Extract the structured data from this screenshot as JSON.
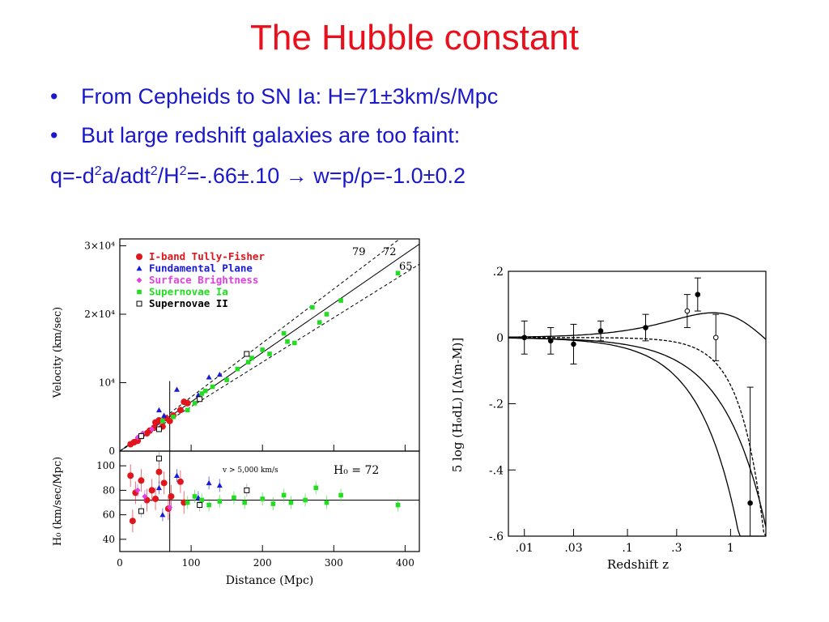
{
  "slide": {
    "title": "The Hubble constant",
    "bullets": [
      "From Cepheids to SN Ia: H=71±3km/s/Mpc",
      "But large redshift galaxies are too faint:"
    ],
    "formula": {
      "p1": "q=-d",
      "s1": "2",
      "p2": "a/adt",
      "s2": "2",
      "p3": "/H",
      "s3": "2",
      "p4": "=-.66±.10  → w=p/ρ=-1.0±0.2"
    }
  },
  "chart_data": [
    {
      "type": "scatter",
      "title": "",
      "xlabel": "Distance (Mpc)",
      "ylabel": "Velocity (km/sec)",
      "xlim": [
        0,
        420
      ],
      "ylim": [
        0,
        31000
      ],
      "x_ticks": [
        "0",
        "100",
        "200",
        "300",
        "400"
      ],
      "y_ticks": [
        "0",
        "10⁴",
        "2×10⁴",
        "3×10⁴"
      ],
      "line_labels": [
        "79",
        "72",
        "65"
      ],
      "series": [
        {
          "name": "I-band Tully-Fisher",
          "color": "#e0161c",
          "marker": "circle",
          "x": [
            15,
            20,
            25,
            30,
            38,
            42,
            48,
            50,
            55,
            60,
            65,
            70,
            75,
            85,
            90,
            95
          ],
          "y": [
            1000,
            1300,
            1500,
            2200,
            2600,
            3000,
            3400,
            4200,
            4500,
            3600,
            4800,
            4400,
            5200,
            6000,
            7200,
            7000
          ]
        },
        {
          "name": "Fundamental Plane",
          "color": "#1a1ad8",
          "marker": "triangle",
          "x": [
            55,
            62,
            80,
            110,
            125,
            140
          ],
          "y": [
            6000,
            5200,
            9000,
            8200,
            10800,
            11200
          ]
        },
        {
          "name": "Surface Brightness",
          "color": "#e040e0",
          "marker": "diamond",
          "x": [
            25,
            32,
            45
          ],
          "y": [
            2000,
            2600,
            3200
          ]
        },
        {
          "name": "Supernovae Ia",
          "color": "#22dd22",
          "marker": "square",
          "x": [
            60,
            75,
            95,
            105,
            115,
            120,
            130,
            150,
            165,
            180,
            185,
            200,
            210,
            230,
            235,
            245,
            270,
            280,
            290,
            310,
            390
          ],
          "y": [
            4400,
            5000,
            6000,
            7000,
            8400,
            8800,
            9400,
            10400,
            12000,
            13000,
            13600,
            14800,
            14200,
            17200,
            16000,
            15800,
            21000,
            18800,
            20000,
            22000,
            26000
          ]
        },
        {
          "name": "Supernovae II",
          "color": "#000000",
          "marker": "open-square",
          "x": [
            30,
            55,
            112,
            178
          ],
          "y": [
            2200,
            3200,
            7600,
            14200
          ]
        }
      ]
    },
    {
      "type": "scatter",
      "title": "",
      "xlabel": "Distance (Mpc)",
      "ylabel": "H₀ (km/sec/Mpc)",
      "xlim": [
        0,
        420
      ],
      "ylim": [
        30,
        112
      ],
      "x_ticks": [
        "0",
        "100",
        "200",
        "300",
        "400"
      ],
      "y_ticks": [
        "40",
        "60",
        "80",
        "100"
      ],
      "annotations": [
        "v > 5,000 km/s",
        "H₀ = 72"
      ],
      "series": [
        {
          "name": "I-band Tully-Fisher",
          "color": "#e0161c",
          "marker": "circle",
          "x": [
            15,
            18,
            22,
            30,
            38,
            45,
            50,
            55,
            62,
            68,
            72,
            85,
            90
          ],
          "y": [
            92,
            55,
            78,
            88,
            72,
            80,
            73,
            95,
            86,
            65,
            75,
            87,
            70
          ]
        },
        {
          "name": "Fundamental Plane",
          "color": "#1a1ad8",
          "marker": "triangle",
          "x": [
            55,
            60,
            80,
            110,
            125,
            140
          ],
          "y": [
            82,
            60,
            92,
            74,
            86,
            84
          ]
        },
        {
          "name": "Surface Brightness",
          "color": "#e040e0",
          "marker": "diamond",
          "x": [
            25,
            35,
            70
          ],
          "y": [
            80,
            75,
            66
          ]
        },
        {
          "name": "Supernovae Ia",
          "color": "#22dd22",
          "marker": "square",
          "x": [
            95,
            105,
            115,
            125,
            140,
            160,
            175,
            200,
            215,
            230,
            240,
            260,
            275,
            290,
            310,
            390
          ],
          "y": [
            70,
            75,
            72,
            68,
            71,
            74,
            70,
            73,
            69,
            76,
            70,
            72,
            82,
            70,
            76,
            68
          ]
        },
        {
          "name": "Supernovae II",
          "color": "#000000",
          "marker": "open-square",
          "x": [
            30,
            55,
            112,
            178
          ],
          "y": [
            63,
            106,
            68,
            80
          ]
        }
      ]
    },
    {
      "type": "line",
      "title": "",
      "xlabel": "Redshift z",
      "ylabel": "5 log (H₀dL) [Δ(m-M)]",
      "xscale": "log",
      "xlim": [
        0.007,
        2.2
      ],
      "ylim": [
        -0.6,
        0.2
      ],
      "x_ticks": [
        ".01",
        ".03",
        ".1",
        ".3",
        "1"
      ],
      "y_ticks": [
        ".2",
        "0",
        "-.2",
        "-.4",
        "-.6"
      ],
      "points": {
        "x": [
          0.01,
          0.018,
          0.03,
          0.055,
          0.15,
          0.38,
          0.48,
          0.72,
          1.55
        ],
        "y": [
          0.0,
          -0.01,
          -0.02,
          0.02,
          0.03,
          0.08,
          0.13,
          0.0,
          -0.5
        ],
        "err": [
          0.05,
          0.04,
          0.06,
          0.03,
          0.04,
          0.05,
          0.05,
          0.07,
          0.35
        ]
      }
    }
  ]
}
